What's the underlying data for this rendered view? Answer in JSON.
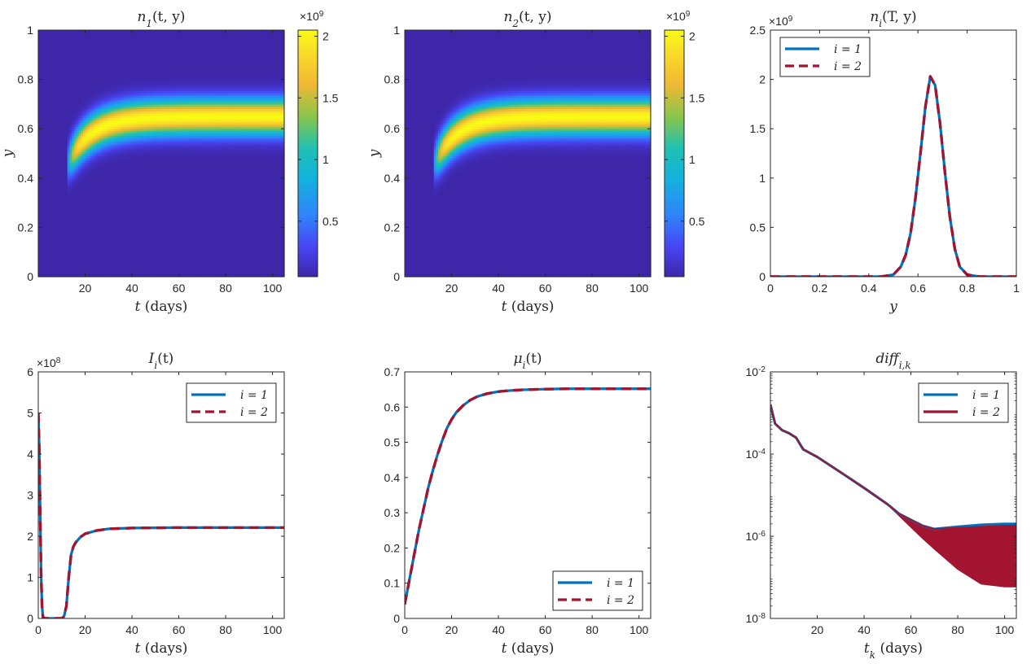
{
  "colors": {
    "blue": "#0072BD",
    "red": "#A2142F",
    "axis": "#262626"
  },
  "chart_data": [
    {
      "id": "n1",
      "type": "heatmap",
      "title_var": "n",
      "title_sub": "1",
      "title_args": "(t, y)",
      "xlabel_var": "t",
      "xlabel_units": " (days)",
      "ylabel": "y",
      "xlim": [
        0,
        105
      ],
      "ylim": [
        0,
        1
      ],
      "xticks": [
        "20",
        "40",
        "60",
        "80",
        "100"
      ],
      "xtick_values": [
        20,
        40,
        60,
        80,
        100
      ],
      "yticks": [
        "0",
        "0.2",
        "0.4",
        "0.6",
        "0.8",
        "1"
      ],
      "ytick_values": [
        0,
        0.2,
        0.4,
        0.6,
        0.8,
        1
      ],
      "colorbar": {
        "ticks": [
          "0.5",
          "1",
          "1.5",
          "2"
        ],
        "tick_values": [
          0.5,
          1,
          1.5,
          2
        ],
        "range": [
          0.05,
          2.05
        ],
        "exponent": "9",
        "multiplier": "×10"
      },
      "ridge": {
        "t_start": 12,
        "y_start": 0.45,
        "y_final": 0.65,
        "tau": 10,
        "sigma": 0.05,
        "peak": 2.05
      }
    },
    {
      "id": "n2",
      "type": "heatmap",
      "title_var": "n",
      "title_sub": "2",
      "title_args": "(t, y)",
      "xlabel_var": "t",
      "xlabel_units": " (days)",
      "ylabel": "y",
      "xlim": [
        0,
        105
      ],
      "ylim": [
        0,
        1
      ],
      "xticks": [
        "20",
        "40",
        "60",
        "80",
        "100"
      ],
      "xtick_values": [
        20,
        40,
        60,
        80,
        100
      ],
      "yticks": [
        "0",
        "0.2",
        "0.4",
        "0.6",
        "0.8",
        "1"
      ],
      "ytick_values": [
        0,
        0.2,
        0.4,
        0.6,
        0.8,
        1
      ],
      "colorbar": {
        "ticks": [
          "0.5",
          "1",
          "1.5",
          "2"
        ],
        "tick_values": [
          0.5,
          1,
          1.5,
          2
        ],
        "range": [
          0.05,
          2.05
        ],
        "exponent": "9",
        "multiplier": "×10"
      },
      "ridge": {
        "t_start": 12,
        "y_start": 0.45,
        "y_final": 0.65,
        "tau": 10,
        "sigma": 0.05,
        "peak": 2.05
      }
    },
    {
      "id": "ni",
      "type": "line",
      "title_var": "n",
      "title_sub": "i",
      "title_args": "(T, y)",
      "xlabel_var": "y",
      "xlabel_units": "",
      "xlim": [
        0,
        1
      ],
      "ylim": [
        0,
        2.5
      ],
      "xticks": [
        "0",
        "0.2",
        "0.4",
        "0.6",
        "0.8",
        "1"
      ],
      "xtick_values": [
        0,
        0.2,
        0.4,
        0.6,
        0.8,
        1
      ],
      "yticks": [
        "0",
        "0.5",
        "1",
        "1.5",
        "2",
        "2.5"
      ],
      "ytick_values": [
        0,
        0.5,
        1,
        1.5,
        2,
        2.5
      ],
      "exponent": "9",
      "multiplier": "×10",
      "legend_loc": "top-left",
      "series": [
        {
          "name": "i = 1",
          "style": "solid",
          "color": "#0072BD",
          "x": [
            0,
            0.45,
            0.5,
            0.53,
            0.55,
            0.57,
            0.59,
            0.61,
            0.63,
            0.65,
            0.67,
            0.69,
            0.71,
            0.73,
            0.75,
            0.77,
            0.8,
            0.85,
            1
          ],
          "y": [
            0,
            0,
            0.02,
            0.1,
            0.22,
            0.44,
            0.8,
            1.25,
            1.72,
            2.03,
            1.94,
            1.55,
            1.05,
            0.6,
            0.28,
            0.1,
            0.02,
            0,
            0
          ]
        },
        {
          "name": "i = 2",
          "style": "dashed",
          "color": "#A2142F",
          "x": [
            0,
            0.45,
            0.5,
            0.53,
            0.55,
            0.57,
            0.59,
            0.61,
            0.63,
            0.65,
            0.67,
            0.69,
            0.71,
            0.73,
            0.75,
            0.77,
            0.8,
            0.85,
            1
          ],
          "y": [
            0,
            0,
            0.02,
            0.1,
            0.22,
            0.44,
            0.8,
            1.25,
            1.72,
            2.03,
            1.94,
            1.55,
            1.05,
            0.6,
            0.28,
            0.1,
            0.02,
            0,
            0
          ]
        }
      ]
    },
    {
      "id": "Ii",
      "type": "line",
      "title_var": "I",
      "title_sub": "i",
      "title_args": "(t)",
      "xlabel_var": "t",
      "xlabel_units": " (days)",
      "xlim": [
        0,
        105
      ],
      "ylim": [
        0,
        6
      ],
      "xticks": [
        "0",
        "20",
        "40",
        "60",
        "80",
        "100"
      ],
      "xtick_values": [
        0,
        20,
        40,
        60,
        80,
        100
      ],
      "yticks": [
        "0",
        "1",
        "2",
        "3",
        "4",
        "5",
        "6"
      ],
      "ytick_values": [
        0,
        1,
        2,
        3,
        4,
        5,
        6
      ],
      "exponent": "8",
      "multiplier": "×10",
      "legend_loc": "top-right",
      "series": [
        {
          "name": "i = 1",
          "style": "solid",
          "color": "#0072BD",
          "x": [
            0,
            0.4,
            0.8,
            1.2,
            1.6,
            2,
            3,
            5,
            10,
            11,
            12,
            13,
            14,
            15,
            16,
            18,
            20,
            25,
            30,
            40,
            60,
            80,
            105
          ],
          "y": [
            5,
            4.2,
            2.6,
            1.1,
            0.3,
            0.03,
            0,
            0,
            0,
            0.05,
            0.3,
            1.0,
            1.55,
            1.75,
            1.85,
            1.98,
            2.06,
            2.14,
            2.18,
            2.2,
            2.21,
            2.21,
            2.21
          ]
        },
        {
          "name": "i = 2",
          "style": "dashed",
          "color": "#A2142F",
          "x": [
            0,
            0.4,
            0.8,
            1.2,
            1.6,
            2,
            3,
            5,
            10,
            11,
            12,
            13,
            14,
            15,
            16,
            18,
            20,
            25,
            30,
            40,
            60,
            80,
            105
          ],
          "y": [
            5,
            4.2,
            2.6,
            1.1,
            0.3,
            0.03,
            0,
            0,
            0,
            0.05,
            0.3,
            1.0,
            1.55,
            1.75,
            1.85,
            1.98,
            2.06,
            2.14,
            2.18,
            2.2,
            2.21,
            2.21,
            2.21
          ]
        }
      ]
    },
    {
      "id": "mui",
      "type": "line",
      "title_var": "μ",
      "title_sub": "i",
      "title_args": "(t)",
      "xlabel_var": "t",
      "xlabel_units": " (days)",
      "xlim": [
        0,
        105
      ],
      "ylim": [
        0,
        0.7
      ],
      "xticks": [
        "0",
        "20",
        "40",
        "60",
        "80",
        "100"
      ],
      "xtick_values": [
        0,
        20,
        40,
        60,
        80,
        100
      ],
      "yticks": [
        "0",
        "0.1",
        "0.2",
        "0.3",
        "0.4",
        "0.5",
        "0.6",
        "0.7"
      ],
      "ytick_values": [
        0,
        0.1,
        0.2,
        0.3,
        0.4,
        0.5,
        0.6,
        0.7
      ],
      "legend_loc": "bottom-right",
      "series": [
        {
          "name": "i = 1",
          "style": "solid",
          "color": "#0072BD",
          "x": [
            0,
            2,
            4,
            6,
            8,
            10,
            12,
            14,
            16,
            18,
            20,
            22,
            25,
            28,
            31,
            35,
            40,
            45,
            50,
            60,
            70,
            80,
            90,
            105
          ],
          "y": [
            0.04,
            0.11,
            0.18,
            0.25,
            0.31,
            0.37,
            0.42,
            0.465,
            0.505,
            0.54,
            0.565,
            0.585,
            0.605,
            0.62,
            0.63,
            0.638,
            0.644,
            0.647,
            0.649,
            0.651,
            0.652,
            0.652,
            0.652,
            0.652
          ]
        },
        {
          "name": "i = 2",
          "style": "dashed",
          "color": "#A2142F",
          "x": [
            0,
            2,
            4,
            6,
            8,
            10,
            12,
            14,
            16,
            18,
            20,
            22,
            25,
            28,
            31,
            35,
            40,
            45,
            50,
            60,
            70,
            80,
            90,
            105
          ],
          "y": [
            0.04,
            0.11,
            0.18,
            0.25,
            0.31,
            0.37,
            0.42,
            0.465,
            0.505,
            0.54,
            0.565,
            0.585,
            0.605,
            0.62,
            0.63,
            0.638,
            0.644,
            0.647,
            0.649,
            0.651,
            0.652,
            0.652,
            0.652,
            0.652
          ]
        }
      ]
    },
    {
      "id": "diff",
      "type": "line",
      "title_var": "diff",
      "title_sub": "i,k",
      "title_args": "",
      "xlabel_var": "t",
      "xlabel_sub": "k",
      "xlabel_units": " (days)",
      "xlim": [
        0,
        105
      ],
      "ylim": [
        1e-08,
        0.01
      ],
      "yscale": "log",
      "xticks": [
        "20",
        "40",
        "60",
        "80",
        "100"
      ],
      "xtick_values": [
        20,
        40,
        60,
        80,
        100
      ],
      "ytick_values": [
        1e-08,
        1e-06,
        0.0001,
        0.01
      ],
      "ytick_base": [
        "10",
        "10",
        "10",
        "10"
      ],
      "ytick_exp": [
        "-8",
        "-6",
        "-4",
        "-2"
      ],
      "legend_loc": "top-right",
      "series": [
        {
          "name": "i = 1",
          "style": "solid",
          "color": "#0072BD",
          "x": [
            0,
            2,
            5,
            8,
            11,
            12.5,
            14,
            20,
            30,
            40,
            50,
            55,
            60,
            65,
            70,
            80,
            90,
            100,
            105
          ],
          "y": [
            0.0016,
            0.00055,
            0.00038,
            0.00032,
            0.00025,
            0.00018,
            0.00013,
            8.5e-05,
            3.6e-05,
            1.5e-05,
            6e-06,
            3.5e-06,
            2.5e-06,
            1.8e-06,
            1.5e-06,
            1.7e-06,
            1.9e-06,
            2e-06,
            2e-06
          ]
        },
        {
          "name": "i = 2",
          "style": "solid",
          "color": "#A2142F",
          "x": [
            0,
            2,
            5,
            8,
            11,
            12.5,
            14,
            20,
            30,
            40,
            50,
            55,
            60,
            65,
            70,
            80,
            90,
            100,
            105
          ],
          "y": [
            0.0016,
            0.00055,
            0.00038,
            0.00032,
            0.00025,
            0.00018,
            0.00013,
            8.5e-05,
            3.6e-05,
            1.5e-05,
            6e-06,
            3.5e-06,
            2.5e-06,
            1.8e-06,
            1.5e-06,
            1.6e-06,
            1.7e-06,
            1.8e-06,
            1.8e-06
          ],
          "band_lower": [
            0.0016,
            0.00055,
            0.00038,
            0.00032,
            0.00025,
            0.00018,
            0.00013,
            8.5e-05,
            3.6e-05,
            1.5e-05,
            6e-06,
            3.2e-06,
            1.7e-06,
            9e-07,
            5e-07,
            1.6e-07,
            7e-08,
            6e-08,
            6e-08
          ]
        }
      ]
    }
  ]
}
